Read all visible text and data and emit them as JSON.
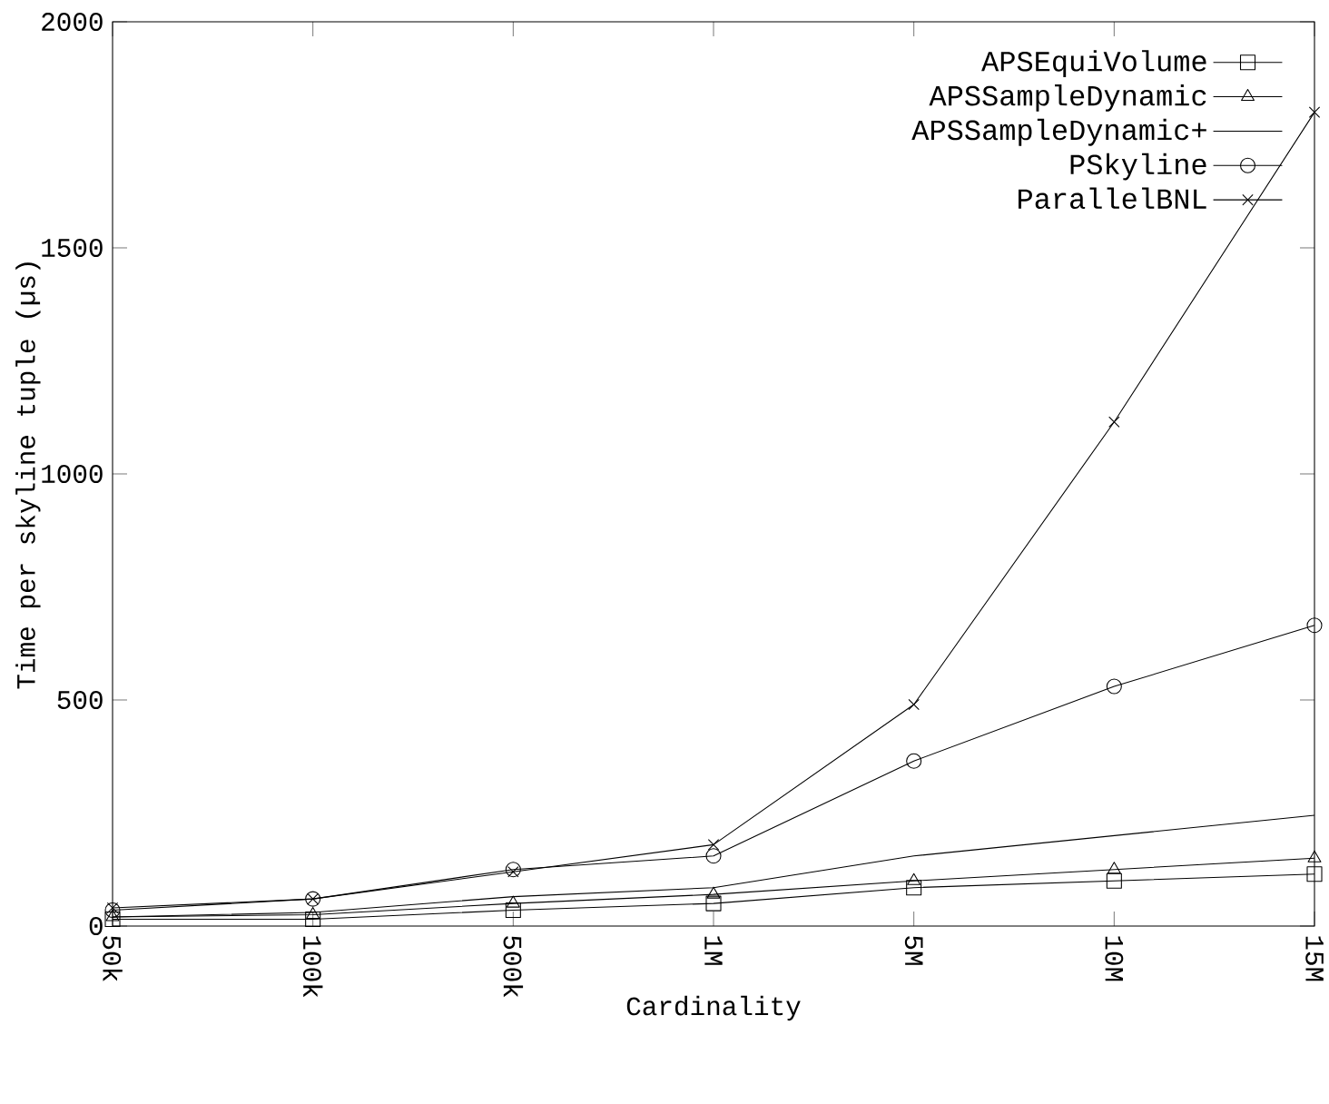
{
  "chart_data": {
    "type": "line",
    "xlabel": "Cardinality",
    "ylabel": "Time per skyline tuple (µs)",
    "categories": [
      "50k",
      "100k",
      "500k",
      "1M",
      "5M",
      "10M",
      "15M"
    ],
    "ylim": [
      0,
      2000
    ],
    "yticks": [
      0,
      500,
      1000,
      1500,
      2000
    ],
    "grid": false,
    "legend": "top right",
    "line_style": "solid",
    "series": [
      {
        "name": "APSEquiVolume",
        "color": "#000000",
        "marker": "square",
        "values": [
          15,
          15,
          35,
          50,
          85,
          100,
          115
        ]
      },
      {
        "name": "APSSampleDynamic",
        "color": "#000000",
        "marker": "triangle",
        "values": [
          20,
          25,
          50,
          70,
          100,
          125,
          150
        ]
      },
      {
        "name": "APSSampleDynamic+",
        "color": "#000000",
        "marker": "none",
        "values": [
          20,
          30,
          65,
          85,
          155,
          200,
          245
        ]
      },
      {
        "name": "PSkyline",
        "color": "#000000",
        "marker": "circle",
        "values": [
          35,
          60,
          125,
          155,
          365,
          530,
          665
        ]
      },
      {
        "name": "ParallelBNL",
        "color": "#000000",
        "marker": "cross",
        "values": [
          40,
          60,
          120,
          180,
          490,
          1115,
          1800
        ]
      }
    ]
  }
}
